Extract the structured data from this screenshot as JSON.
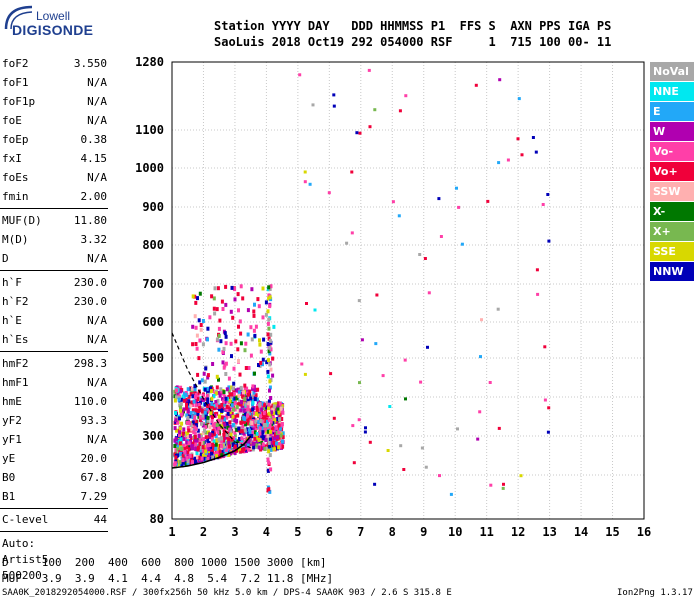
{
  "logo": {
    "top": "Lowell",
    "bottom": "DIGISONDE"
  },
  "header": {
    "line1": "Station YYYY DAY   DDD HHMMSS P1  FFS S  AXN PPS IGA PS",
    "line2": "SaoLuis 2018 Oct19 292 054000 RSF     1  715 100 00- 11"
  },
  "parameters": [
    {
      "name": "foF2",
      "value": "3.550"
    },
    {
      "name": "foF1",
      "value": "N/A"
    },
    {
      "name": "foF1p",
      "value": "N/A"
    },
    {
      "name": "foE",
      "value": "N/A"
    },
    {
      "name": "foEp",
      "value": "0.38"
    },
    {
      "name": "fxI",
      "value": "4.15"
    },
    {
      "name": "foEs",
      "value": "N/A"
    },
    {
      "name": "fmin",
      "value": "2.00"
    },
    {
      "name": "MUF(D)",
      "value": "11.80"
    },
    {
      "name": "M(D)",
      "value": "3.32"
    },
    {
      "name": "D",
      "value": "N/A"
    },
    {
      "name": "h`F",
      "value": "230.0"
    },
    {
      "name": "h`F2",
      "value": "230.0"
    },
    {
      "name": "h`E",
      "value": "N/A"
    },
    {
      "name": "h`Es",
      "value": "N/A"
    },
    {
      "name": "hmF2",
      "value": "298.3"
    },
    {
      "name": "hmF1",
      "value": "N/A"
    },
    {
      "name": "hmE",
      "value": "110.0"
    },
    {
      "name": "yF2",
      "value": "93.3"
    },
    {
      "name": "yF1",
      "value": "N/A"
    },
    {
      "name": "yE",
      "value": "20.0"
    },
    {
      "name": "B0",
      "value": "67.8"
    },
    {
      "name": "B1",
      "value": "7.29"
    },
    {
      "name": "C-level",
      "value": "44"
    }
  ],
  "autoscaling": {
    "line1": "Auto:",
    "line2": "Artist5",
    "line3": "500200"
  },
  "dmuf_table": {
    "d_line": "D     100  200  400  600  800 1000 1500 3000 [km]",
    "muf_line": "MUF   3.9  3.9  4.1  4.4  4.8  5.4  7.2 11.8 [MHz]"
  },
  "footer": {
    "left": "SAA0K_2018292054000.RSF / 300fx256h 50 kHz 5.0 km / DPS-4 SAA0K 903 / 2.6 S 315.8 E",
    "right": "Ion2Png 1.3.17"
  },
  "legend": [
    {
      "label": "NoVal",
      "color": "#a8a8a8"
    },
    {
      "label": "NNE",
      "color": "#00e8f0"
    },
    {
      "label": "E",
      "color": "#22a8f8"
    },
    {
      "label": "W",
      "color": "#b000b0"
    },
    {
      "label": "Vo-",
      "color": "#ff3fa8"
    },
    {
      "label": "Vo+",
      "color": "#f0003a"
    },
    {
      "label": "SSW",
      "color": "#ffb0b0"
    },
    {
      "label": "X-",
      "color": "#007800"
    },
    {
      "label": "X+",
      "color": "#78b850"
    },
    {
      "label": "SSE",
      "color": "#d8d800"
    },
    {
      "label": "NNW",
      "color": "#0000b8"
    }
  ],
  "chart_data": {
    "type": "scatter",
    "x_ticks": [
      "1",
      "2",
      "3",
      "4",
      "5",
      "6",
      "7",
      "8",
      "9",
      "10",
      "11",
      "12",
      "13",
      "14",
      "15",
      "16"
    ],
    "y_ticks": [
      "80",
      "200",
      "300",
      "400",
      "500",
      "600",
      "700",
      "800",
      "900",
      "1000",
      "1100",
      "1280"
    ],
    "xlim": [
      1,
      16
    ],
    "ylim": [
      80,
      1280
    ],
    "grid": true,
    "legend_placement": "right",
    "trace_fit": {
      "x": [
        1.0,
        1.5,
        2.0,
        2.5,
        3.0,
        3.3,
        3.5
      ],
      "y": [
        218,
        223,
        232,
        245,
        262,
        280,
        300
      ]
    },
    "profile_fit": {
      "x": [
        1.0,
        1.5,
        2.0,
        2.5,
        3.0,
        3.5
      ],
      "y": [
        570,
        470,
        395,
        330,
        285,
        270
      ]
    },
    "echo_clusters": [
      {
        "x": [
          1.0,
          4.5
        ],
        "y": [
          220,
          430
        ],
        "density": "high"
      },
      {
        "x": [
          1.6,
          4.2
        ],
        "y": [
          430,
          700
        ],
        "density": "low"
      },
      {
        "x": [
          4.0,
          4.1
        ],
        "y": [
          150,
          700
        ],
        "density": "medium"
      },
      {
        "x": [
          5.0,
          13.0
        ],
        "y": [
          150,
          1280
        ],
        "density": "sparse"
      }
    ]
  }
}
